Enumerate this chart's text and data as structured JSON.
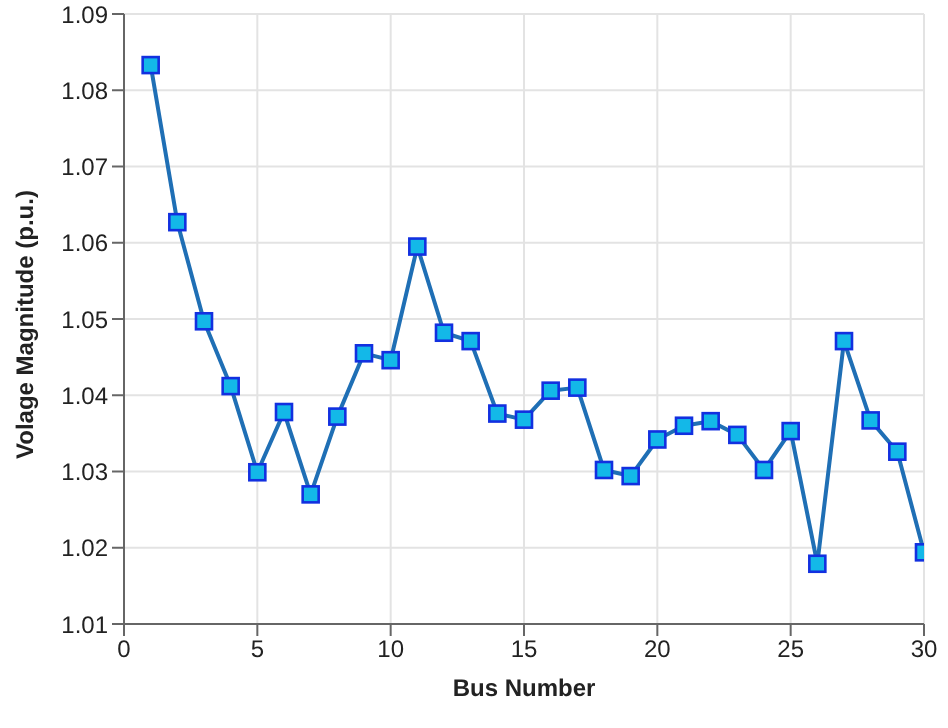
{
  "chart_data": {
    "type": "line",
    "xlabel": "Bus Number",
    "ylabel": "Volage Magnitude (p.u.)",
    "x": [
      1,
      2,
      3,
      4,
      5,
      6,
      7,
      8,
      9,
      10,
      11,
      12,
      13,
      14,
      15,
      16,
      17,
      18,
      19,
      20,
      21,
      22,
      23,
      24,
      25,
      26,
      27,
      28,
      29,
      30
    ],
    "series": [
      {
        "color": "#1f6fb5",
        "values": [
          1.0833,
          1.0627,
          1.0497,
          1.0412,
          1.0299,
          1.0378,
          1.027,
          1.0372,
          1.0455,
          1.0446,
          1.0595,
          1.0482,
          1.0471,
          1.0376,
          1.0368,
          1.0406,
          1.041,
          1.0302,
          1.0294,
          1.0342,
          1.036,
          1.0366,
          1.0348,
          1.0302,
          1.0353,
          1.0179,
          1.0471,
          1.0367,
          1.0326,
          1.0194
        ]
      }
    ],
    "xlim": [
      0,
      30
    ],
    "xticks": [
      0,
      5,
      10,
      15,
      20,
      25,
      30
    ],
    "ylim": [
      1.01,
      1.09
    ],
    "yticks": [
      1.01,
      1.02,
      1.03,
      1.04,
      1.05,
      1.06,
      1.07,
      1.08,
      1.09
    ],
    "grid": true,
    "marker": "square",
    "line_style": "solid"
  }
}
